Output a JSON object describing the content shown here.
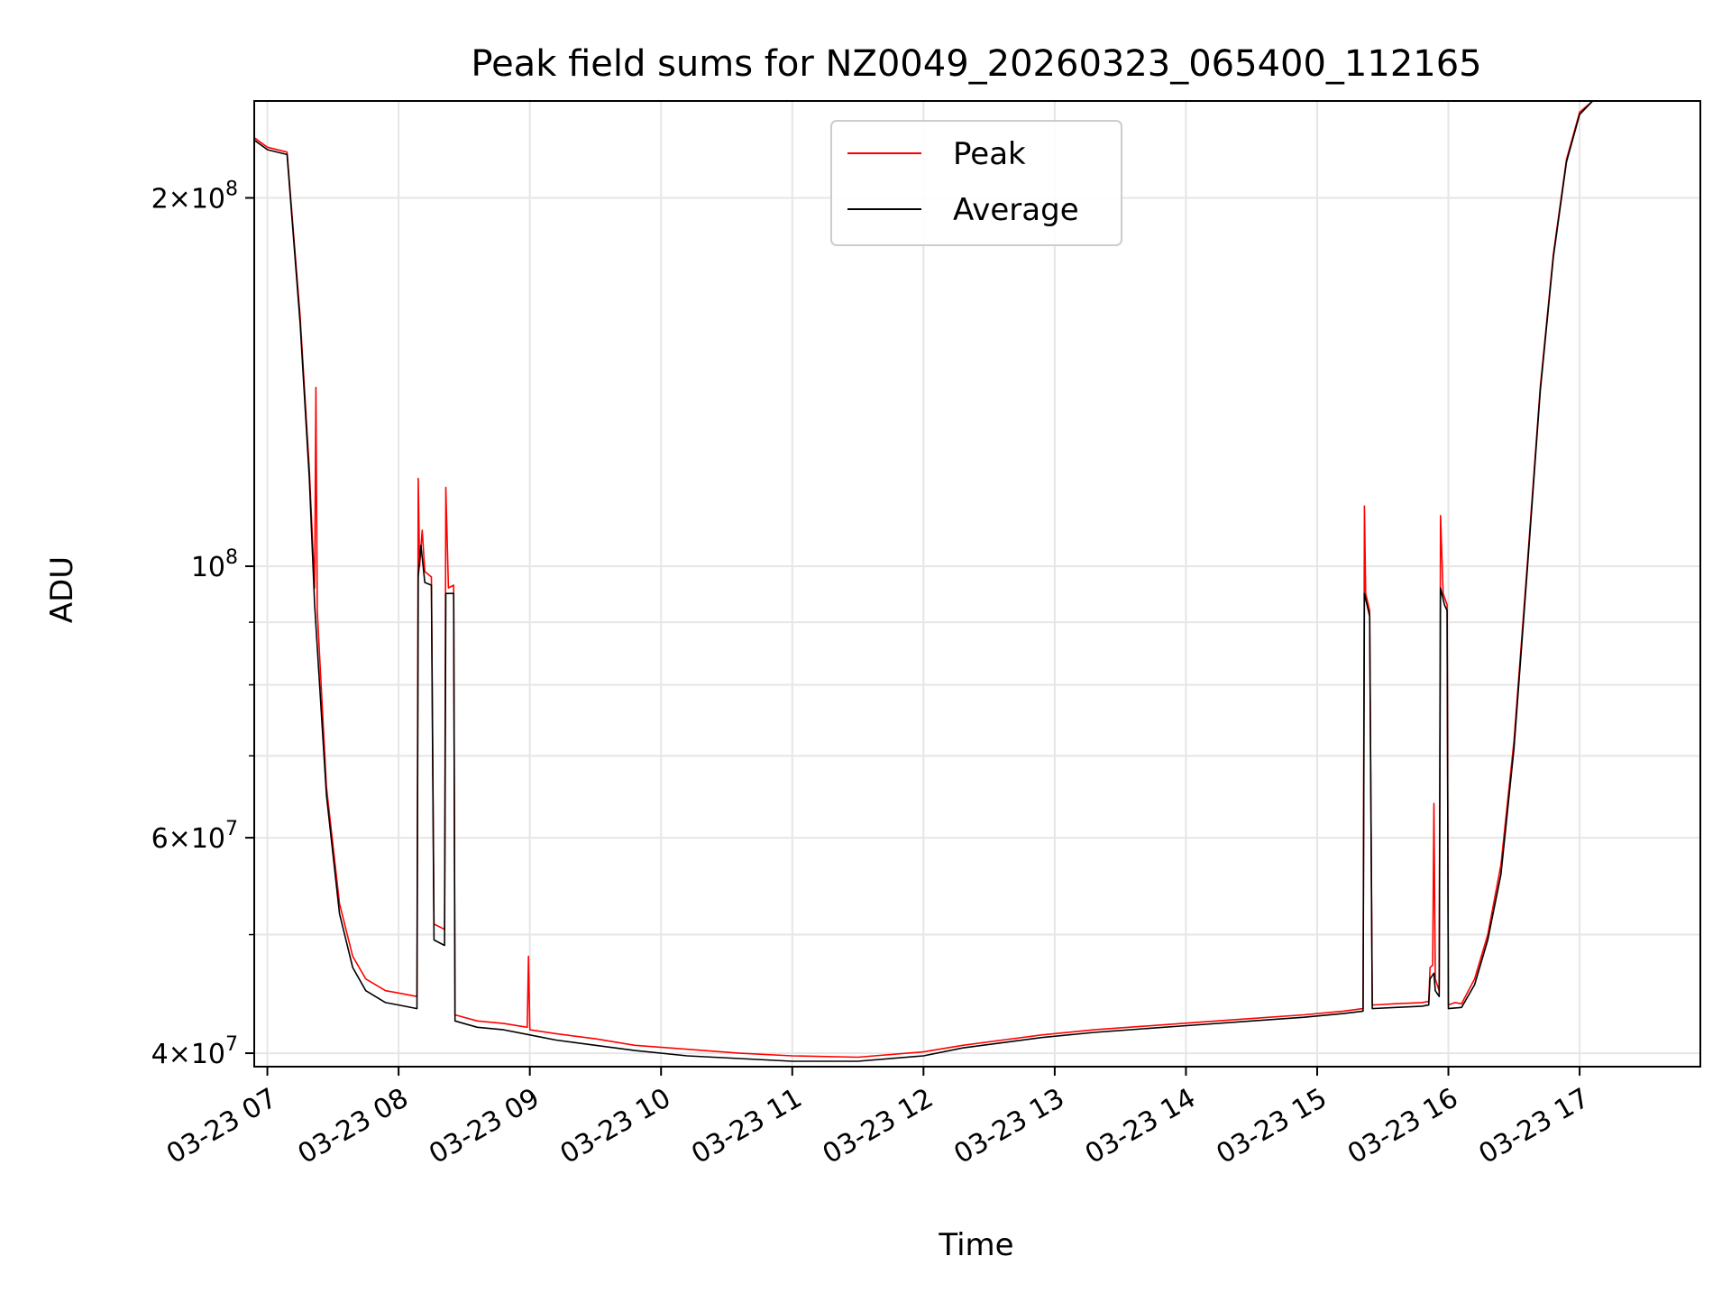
{
  "chart_data": {
    "type": "line",
    "title": "Peak field sums for NZ0049_20260323_065400_112165",
    "xlabel": "Time",
    "ylabel": "ADU",
    "yscale": "log",
    "ylim": [
      39000000,
      240000000
    ],
    "xlim_hours": [
      6.9,
      17.92
    ],
    "grid": true,
    "legend_position": "top-center",
    "x_ticks": [
      {
        "hour": 7,
        "label": "03-23 07"
      },
      {
        "hour": 8,
        "label": "03-23 08"
      },
      {
        "hour": 9,
        "label": "03-23 09"
      },
      {
        "hour": 10,
        "label": "03-23 10"
      },
      {
        "hour": 11,
        "label": "03-23 11"
      },
      {
        "hour": 12,
        "label": "03-23 12"
      },
      {
        "hour": 13,
        "label": "03-23 13"
      },
      {
        "hour": 14,
        "label": "03-23 14"
      },
      {
        "hour": 15,
        "label": "03-23 15"
      },
      {
        "hour": 16,
        "label": "03-23 16"
      },
      {
        "hour": 17,
        "label": "03-23 17"
      }
    ],
    "y_ticks": [
      {
        "value": 40000000,
        "mantissa": "4",
        "exponent": "7"
      },
      {
        "value": 60000000,
        "mantissa": "6",
        "exponent": "7"
      },
      {
        "value": 100000000,
        "mantissa": "",
        "exponent": "8"
      },
      {
        "value": 200000000,
        "mantissa": "2",
        "exponent": "8"
      }
    ],
    "y_minor_ticks": [
      50000000,
      70000000,
      80000000,
      90000000
    ],
    "series": [
      {
        "name": "Peak",
        "color": "#ff0000",
        "points": [
          [
            6.9,
            224000000
          ],
          [
            7.0,
            220000000
          ],
          [
            7.15,
            218000000
          ],
          [
            7.25,
            160000000
          ],
          [
            7.32,
            120000000
          ],
          [
            7.36,
            96000000
          ],
          [
            7.37,
            140000000
          ],
          [
            7.38,
            92000000
          ],
          [
            7.45,
            66000000
          ],
          [
            7.55,
            53000000
          ],
          [
            7.65,
            48000000
          ],
          [
            7.75,
            46000000
          ],
          [
            7.9,
            45000000
          ],
          [
            8.0,
            44800000
          ],
          [
            8.14,
            44500000
          ],
          [
            8.15,
            118000000
          ],
          [
            8.16,
            100000000
          ],
          [
            8.18,
            107000000
          ],
          [
            8.2,
            99000000
          ],
          [
            8.25,
            98000000
          ],
          [
            8.27,
            51000000
          ],
          [
            8.35,
            50500000
          ],
          [
            8.36,
            116000000
          ],
          [
            8.38,
            96000000
          ],
          [
            8.42,
            96500000
          ],
          [
            8.43,
            43000000
          ],
          [
            8.6,
            42500000
          ],
          [
            8.8,
            42300000
          ],
          [
            8.98,
            42000000
          ],
          [
            8.99,
            48000000
          ],
          [
            9.0,
            41800000
          ],
          [
            9.2,
            41500000
          ],
          [
            9.5,
            41100000
          ],
          [
            9.8,
            40600000
          ],
          [
            10.2,
            40300000
          ],
          [
            10.6,
            40000000
          ],
          [
            11.0,
            39800000
          ],
          [
            11.5,
            39700000
          ],
          [
            12.0,
            40100000
          ],
          [
            12.3,
            40600000
          ],
          [
            12.6,
            41000000
          ],
          [
            12.9,
            41400000
          ],
          [
            13.3,
            41800000
          ],
          [
            13.7,
            42100000
          ],
          [
            14.1,
            42400000
          ],
          [
            14.5,
            42700000
          ],
          [
            14.9,
            43000000
          ],
          [
            15.2,
            43300000
          ],
          [
            15.35,
            43500000
          ],
          [
            15.36,
            112000000
          ],
          [
            15.37,
            95000000
          ],
          [
            15.4,
            92000000
          ],
          [
            15.42,
            43800000
          ],
          [
            15.6,
            43900000
          ],
          [
            15.8,
            44000000
          ],
          [
            15.85,
            44100000
          ],
          [
            15.86,
            47000000
          ],
          [
            15.88,
            47200000
          ],
          [
            15.89,
            64000000
          ],
          [
            15.9,
            46000000
          ],
          [
            15.93,
            45000000
          ],
          [
            15.94,
            110000000
          ],
          [
            15.96,
            95000000
          ],
          [
            15.99,
            93000000
          ],
          [
            16.0,
            43800000
          ],
          [
            16.05,
            44000000
          ],
          [
            16.1,
            43900000
          ],
          [
            16.2,
            46000000
          ],
          [
            16.3,
            50000000
          ],
          [
            16.4,
            57000000
          ],
          [
            16.5,
            72000000
          ],
          [
            16.6,
            100000000
          ],
          [
            16.7,
            140000000
          ],
          [
            16.8,
            180000000
          ],
          [
            16.9,
            215000000
          ],
          [
            17.0,
            235000000
          ],
          [
            17.1,
            240000000
          ],
          [
            17.92,
            240000000
          ]
        ]
      },
      {
        "name": "Average",
        "color": "#000000",
        "points": [
          [
            6.9,
            223000000
          ],
          [
            7.0,
            219000000
          ],
          [
            7.15,
            217000000
          ],
          [
            7.25,
            158000000
          ],
          [
            7.32,
            118000000
          ],
          [
            7.36,
            93000000
          ],
          [
            7.45,
            65000000
          ],
          [
            7.55,
            52000000
          ],
          [
            7.65,
            47000000
          ],
          [
            7.75,
            45000000
          ],
          [
            7.9,
            44000000
          ],
          [
            8.0,
            43800000
          ],
          [
            8.14,
            43500000
          ],
          [
            8.15,
            98000000
          ],
          [
            8.17,
            104000000
          ],
          [
            8.2,
            97000000
          ],
          [
            8.25,
            96500000
          ],
          [
            8.27,
            49500000
          ],
          [
            8.35,
            49000000
          ],
          [
            8.36,
            95000000
          ],
          [
            8.42,
            95000000
          ],
          [
            8.43,
            42500000
          ],
          [
            8.6,
            42000000
          ],
          [
            8.8,
            41800000
          ],
          [
            9.0,
            41400000
          ],
          [
            9.2,
            41000000
          ],
          [
            9.5,
            40600000
          ],
          [
            9.8,
            40200000
          ],
          [
            10.2,
            39800000
          ],
          [
            10.6,
            39600000
          ],
          [
            11.0,
            39400000
          ],
          [
            11.5,
            39400000
          ],
          [
            12.0,
            39800000
          ],
          [
            12.3,
            40400000
          ],
          [
            12.6,
            40800000
          ],
          [
            12.9,
            41200000
          ],
          [
            13.3,
            41600000
          ],
          [
            13.7,
            41900000
          ],
          [
            14.1,
            42200000
          ],
          [
            14.5,
            42500000
          ],
          [
            14.9,
            42800000
          ],
          [
            15.2,
            43100000
          ],
          [
            15.35,
            43300000
          ],
          [
            15.36,
            95000000
          ],
          [
            15.4,
            91000000
          ],
          [
            15.42,
            43500000
          ],
          [
            15.6,
            43600000
          ],
          [
            15.8,
            43700000
          ],
          [
            15.85,
            43800000
          ],
          [
            15.86,
            46000000
          ],
          [
            15.89,
            46500000
          ],
          [
            15.9,
            45000000
          ],
          [
            15.93,
            44500000
          ],
          [
            15.94,
            96000000
          ],
          [
            15.97,
            93000000
          ],
          [
            15.99,
            92000000
          ],
          [
            16.0,
            43500000
          ],
          [
            16.1,
            43600000
          ],
          [
            16.2,
            45500000
          ],
          [
            16.3,
            49500000
          ],
          [
            16.4,
            56000000
          ],
          [
            16.5,
            71000000
          ],
          [
            16.6,
            99000000
          ],
          [
            16.7,
            139000000
          ],
          [
            16.8,
            179000000
          ],
          [
            16.9,
            214000000
          ],
          [
            17.0,
            234000000
          ],
          [
            17.1,
            240000000
          ],
          [
            17.92,
            240000000
          ]
        ]
      }
    ]
  }
}
